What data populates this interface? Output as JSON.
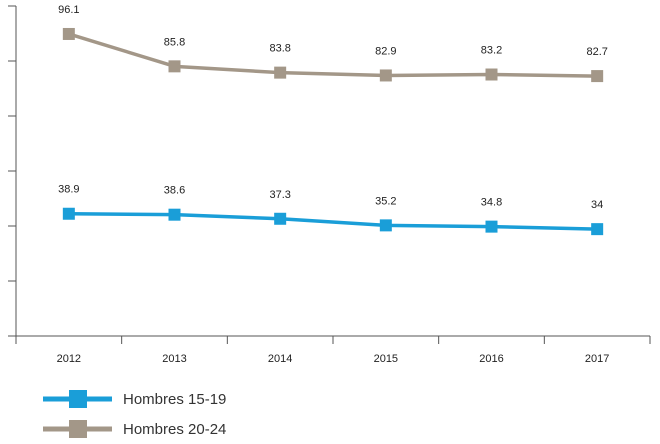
{
  "chart_data": {
    "type": "line",
    "categories": [
      "2012",
      "2013",
      "2014",
      "2015",
      "2016",
      "2017"
    ],
    "ylim": [
      0,
      105
    ],
    "grid": false,
    "legend_placement": "bottom-left",
    "series": [
      {
        "name": "Hombres 15-19",
        "color": "#1a9ed8",
        "values": [
          38.9,
          38.6,
          37.3,
          35.2,
          34.8,
          34
        ],
        "labels": [
          "38.9",
          "38.6",
          "37.3",
          "35.2",
          "34.8",
          "34"
        ]
      },
      {
        "name": "Hombres 20-24",
        "color": "#a39788",
        "values": [
          96.1,
          85.8,
          83.8,
          82.9,
          83.2,
          82.7
        ],
        "labels": [
          "96.1",
          "85.8",
          "83.8",
          "82.9",
          "83.2",
          "82.7"
        ]
      }
    ]
  }
}
